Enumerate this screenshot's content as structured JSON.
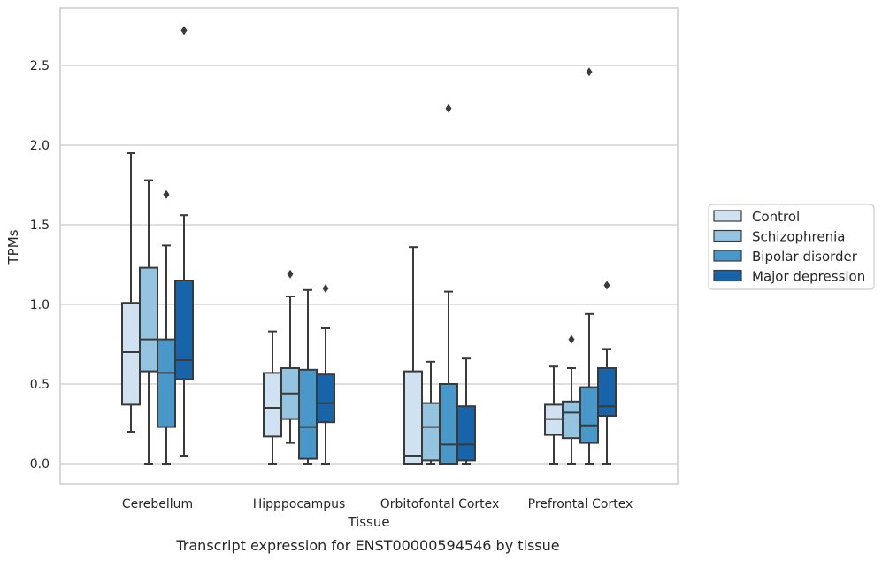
{
  "caption": "Transcript expression for ENST00000594546 by tissue",
  "chart_data": {
    "type": "box",
    "xlabel": "Tissue",
    "ylabel": "TPMs",
    "ylim": [
      -0.13,
      2.87
    ],
    "yticks": [
      "0.0",
      "0.5",
      "1.0",
      "1.5",
      "2.0",
      "2.5"
    ],
    "categories": [
      "Cerebellum",
      "Hipppocampus",
      "Orbitofontal Cortex",
      "Prefrontal Cortex"
    ],
    "grid": "horizontal",
    "legend_position": "right",
    "series": [
      {
        "name": "Control",
        "color": "#d0e1f2",
        "boxes": [
          {
            "whislo": 0.2,
            "q1": 0.37,
            "med": 0.7,
            "q3": 1.01,
            "whishi": 1.95,
            "fliers": []
          },
          {
            "whislo": 0.0,
            "q1": 0.17,
            "med": 0.35,
            "q3": 0.57,
            "whishi": 0.83,
            "fliers": []
          },
          {
            "whislo": 0.0,
            "q1": 0.0,
            "med": 0.05,
            "q3": 0.58,
            "whishi": 1.36,
            "fliers": []
          },
          {
            "whislo": 0.0,
            "q1": 0.18,
            "med": 0.28,
            "q3": 0.37,
            "whishi": 0.61,
            "fliers": []
          }
        ]
      },
      {
        "name": "Schizophrenia",
        "color": "#94c4df",
        "boxes": [
          {
            "whislo": 0.0,
            "q1": 0.58,
            "med": 0.78,
            "q3": 1.23,
            "whishi": 1.78,
            "fliers": []
          },
          {
            "whislo": 0.13,
            "q1": 0.28,
            "med": 0.44,
            "q3": 0.6,
            "whishi": 1.05,
            "fliers": [
              1.19
            ]
          },
          {
            "whislo": 0.0,
            "q1": 0.02,
            "med": 0.23,
            "q3": 0.38,
            "whishi": 0.64,
            "fliers": []
          },
          {
            "whislo": 0.0,
            "q1": 0.16,
            "med": 0.32,
            "q3": 0.39,
            "whishi": 0.6,
            "fliers": [
              0.78
            ]
          }
        ]
      },
      {
        "name": "Bipolar disorder",
        "color": "#4a98c9",
        "boxes": [
          {
            "whislo": 0.0,
            "q1": 0.23,
            "med": 0.57,
            "q3": 0.78,
            "whishi": 1.37,
            "fliers": [
              1.69
            ]
          },
          {
            "whislo": 0.0,
            "q1": 0.03,
            "med": 0.23,
            "q3": 0.59,
            "whishi": 1.09,
            "fliers": []
          },
          {
            "whislo": 0.0,
            "q1": 0.0,
            "med": 0.12,
            "q3": 0.5,
            "whishi": 1.08,
            "fliers": [
              2.23
            ]
          },
          {
            "whislo": 0.0,
            "q1": 0.13,
            "med": 0.24,
            "q3": 0.48,
            "whishi": 0.94,
            "fliers": [
              2.46
            ]
          }
        ]
      },
      {
        "name": "Major depression",
        "color": "#1764ab",
        "boxes": [
          {
            "whislo": 0.05,
            "q1": 0.53,
            "med": 0.65,
            "q3": 1.15,
            "whishi": 1.56,
            "fliers": [
              2.72
            ]
          },
          {
            "whislo": 0.0,
            "q1": 0.26,
            "med": 0.38,
            "q3": 0.56,
            "whishi": 0.85,
            "fliers": [
              1.1
            ]
          },
          {
            "whislo": 0.0,
            "q1": 0.02,
            "med": 0.12,
            "q3": 0.36,
            "whishi": 0.66,
            "fliers": []
          },
          {
            "whislo": 0.0,
            "q1": 0.3,
            "med": 0.36,
            "q3": 0.6,
            "whishi": 0.72,
            "fliers": [
              1.12
            ]
          }
        ]
      }
    ]
  }
}
